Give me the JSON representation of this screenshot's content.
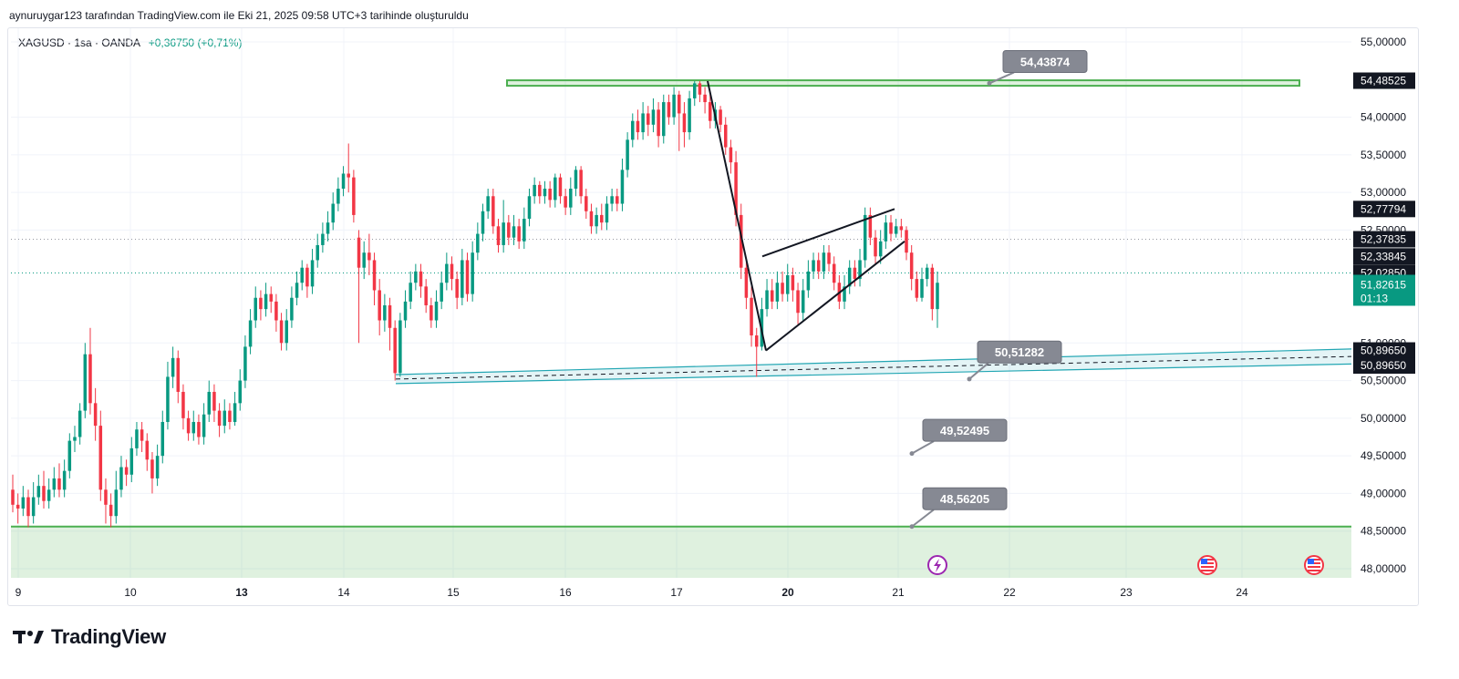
{
  "header": {
    "caption": "aynuruygar123 tarafından TradingView.com ile Eki 21, 2025 09:58 UTC+3 tarihinde oluşturuldu"
  },
  "legend": {
    "symbol": "XAGUSD · 1sa · OANDA",
    "change": "+0,36750 (+0,71%)"
  },
  "brand": {
    "name": "TradingView"
  },
  "colors": {
    "up": "#089981",
    "down": "#f23645",
    "zone_green": "#4caf50",
    "zone_teal": "#22a6b3",
    "label_gray": "#868993",
    "price_tag_dark": "#131722"
  },
  "chart_data": {
    "type": "candlestick",
    "symbol": "XAGUSD",
    "timeframe": "1sa",
    "broker": "OANDA",
    "ylim": [
      47.9,
      55.15
    ],
    "y_ticks": [
      "55,00000",
      "54,00000",
      "53,50000",
      "53,00000",
      "52,50000",
      "51,00000",
      "50,50000",
      "50,00000",
      "49,50000",
      "49,00000",
      "48,50000",
      "48,00000"
    ],
    "x_ticks": [
      {
        "label": "9",
        "bold": false
      },
      {
        "label": "10",
        "bold": false
      },
      {
        "label": "13",
        "bold": true
      },
      {
        "label": "14",
        "bold": false
      },
      {
        "label": "15",
        "bold": false
      },
      {
        "label": "16",
        "bold": false
      },
      {
        "label": "17",
        "bold": false
      },
      {
        "label": "20",
        "bold": true
      },
      {
        "label": "21",
        "bold": false
      },
      {
        "label": "22",
        "bold": false
      },
      {
        "label": "23",
        "bold": false
      },
      {
        "label": "24",
        "bold": false
      }
    ],
    "price_tags": [
      {
        "value": "54,48525",
        "price": 54.485,
        "kind": "dark"
      },
      {
        "value": "52,77794",
        "price": 52.78,
        "kind": "dark"
      },
      {
        "value": "52,37835",
        "price": 52.378,
        "kind": "dark"
      },
      {
        "value": "52,33845",
        "price": 52.15,
        "kind": "dark"
      },
      {
        "value": "52,02850",
        "price": 51.93,
        "kind": "dark"
      },
      {
        "value": "51,82615",
        "price": 51.7,
        "kind": "current",
        "countdown": "01:13"
      },
      {
        "value": "50,89650",
        "price": 50.9,
        "kind": "dark"
      },
      {
        "value": "50,89650",
        "price": 50.7,
        "kind": "dark"
      }
    ],
    "annotations": [
      {
        "text": "54,43874",
        "price": 54.74,
        "anchor_price": 54.45
      },
      {
        "text": "50,51282",
        "price": 50.88,
        "anchor_price": 50.52
      },
      {
        "text": "49,52495",
        "price": 49.84,
        "anchor_price": 49.53
      },
      {
        "text": "48,56205",
        "price": 48.93,
        "anchor_price": 48.56
      }
    ],
    "levels": {
      "resistance_zone": [
        54.42,
        54.49
      ],
      "support_line": 48.56,
      "support_zone_bottom": 47.9,
      "trend_channel": {
        "start_price": [
          50.58,
          50.46
        ],
        "end_price": [
          50.92,
          50.72
        ],
        "mid": [
          50.52,
          50.82
        ]
      }
    },
    "patterns": {
      "drop_leg": {
        "from_price": 54.48,
        "to_price": 50.9
      },
      "rising_wedge": {
        "upper": [
          52.15,
          52.78
        ],
        "lower": [
          50.9,
          52.35
        ]
      }
    },
    "candles": [
      [
        49.05,
        48.85,
        49.25,
        48.75
      ],
      [
        48.85,
        48.8,
        49.0,
        48.6
      ],
      [
        48.8,
        48.95,
        49.1,
        48.7
      ],
      [
        48.95,
        48.7,
        49.05,
        48.55
      ],
      [
        48.7,
        48.95,
        49.15,
        48.6
      ],
      [
        48.95,
        49.1,
        49.25,
        48.85
      ],
      [
        49.1,
        48.9,
        49.3,
        48.8
      ],
      [
        48.9,
        49.05,
        49.2,
        48.8
      ],
      [
        49.05,
        49.2,
        49.35,
        48.95
      ],
      [
        49.2,
        49.05,
        49.4,
        48.95
      ],
      [
        49.05,
        49.3,
        49.45,
        48.95
      ],
      [
        49.3,
        49.7,
        49.8,
        49.2
      ],
      [
        49.7,
        49.75,
        49.9,
        49.55
      ],
      [
        49.75,
        50.1,
        50.2,
        49.65
      ],
      [
        50.1,
        50.85,
        51.0,
        50.0
      ],
      [
        50.85,
        50.2,
        51.2,
        50.05
      ],
      [
        50.2,
        49.9,
        50.4,
        49.7
      ],
      [
        49.9,
        49.05,
        50.1,
        48.9
      ],
      [
        49.05,
        48.85,
        49.2,
        48.6
      ],
      [
        48.85,
        48.7,
        49.0,
        48.55
      ],
      [
        48.7,
        49.05,
        49.3,
        48.6
      ],
      [
        49.05,
        49.35,
        49.5,
        48.95
      ],
      [
        49.35,
        49.25,
        49.45,
        49.1
      ],
      [
        49.25,
        49.6,
        49.75,
        49.15
      ],
      [
        49.6,
        49.85,
        49.95,
        49.5
      ],
      [
        49.85,
        49.7,
        49.95,
        49.55
      ],
      [
        49.7,
        49.45,
        49.8,
        49.3
      ],
      [
        49.45,
        49.2,
        49.55,
        49.0
      ],
      [
        49.2,
        49.5,
        49.65,
        49.1
      ],
      [
        49.5,
        49.95,
        50.1,
        49.4
      ],
      [
        49.95,
        50.55,
        50.75,
        49.85
      ],
      [
        50.55,
        50.8,
        50.95,
        50.4
      ],
      [
        50.8,
        50.35,
        50.9,
        50.2
      ],
      [
        50.35,
        50.0,
        50.45,
        49.85
      ],
      [
        50.0,
        49.8,
        50.1,
        49.7
      ],
      [
        49.8,
        49.95,
        50.1,
        49.7
      ],
      [
        49.95,
        49.75,
        50.05,
        49.65
      ],
      [
        49.75,
        50.05,
        50.2,
        49.65
      ],
      [
        50.05,
        50.35,
        50.5,
        49.95
      ],
      [
        50.35,
        50.1,
        50.45,
        49.95
      ],
      [
        50.1,
        49.9,
        50.2,
        49.75
      ],
      [
        49.9,
        50.1,
        50.25,
        49.8
      ],
      [
        50.1,
        49.95,
        50.2,
        49.85
      ],
      [
        49.95,
        50.2,
        50.35,
        49.9
      ],
      [
        50.2,
        50.5,
        50.65,
        50.1
      ],
      [
        50.5,
        50.95,
        51.1,
        50.4
      ],
      [
        50.95,
        51.3,
        51.45,
        50.85
      ],
      [
        51.3,
        51.6,
        51.75,
        51.2
      ],
      [
        51.6,
        51.45,
        51.7,
        51.3
      ],
      [
        51.45,
        51.65,
        51.8,
        51.35
      ],
      [
        51.65,
        51.55,
        51.75,
        51.4
      ],
      [
        51.55,
        51.3,
        51.65,
        51.15
      ],
      [
        51.3,
        51.0,
        51.4,
        50.9
      ],
      [
        51.0,
        51.3,
        51.45,
        50.9
      ],
      [
        51.3,
        51.6,
        51.75,
        51.2
      ],
      [
        51.6,
        51.8,
        51.95,
        51.5
      ],
      [
        51.8,
        52.0,
        52.1,
        51.7
      ],
      [
        52.0,
        51.75,
        52.05,
        51.6
      ],
      [
        51.75,
        52.1,
        52.25,
        51.65
      ],
      [
        52.1,
        52.3,
        52.45,
        52.0
      ],
      [
        52.3,
        52.45,
        52.6,
        52.2
      ],
      [
        52.45,
        52.6,
        52.75,
        52.35
      ],
      [
        52.6,
        52.85,
        53.0,
        52.5
      ],
      [
        52.85,
        53.05,
        53.2,
        52.75
      ],
      [
        53.05,
        53.25,
        53.35,
        52.95
      ],
      [
        53.25,
        53.2,
        53.65,
        53.0
      ],
      [
        53.2,
        52.7,
        53.3,
        52.6
      ],
      [
        52.4,
        52.0,
        52.5,
        51.0
      ],
      [
        52.0,
        52.2,
        52.35,
        51.85
      ],
      [
        52.2,
        52.1,
        52.45,
        51.9
      ],
      [
        52.1,
        51.7,
        52.2,
        51.5
      ],
      [
        51.7,
        51.3,
        51.85,
        51.1
      ],
      [
        51.3,
        51.5,
        51.65,
        51.15
      ],
      [
        51.5,
        51.2,
        51.6,
        50.9
      ],
      [
        51.2,
        50.6,
        51.3,
        50.5
      ],
      [
        50.6,
        51.3,
        51.4,
        50.55
      ],
      [
        51.3,
        51.55,
        51.7,
        51.2
      ],
      [
        51.55,
        51.8,
        51.95,
        51.45
      ],
      [
        51.8,
        51.95,
        52.05,
        51.7
      ],
      [
        51.95,
        51.75,
        52.05,
        51.6
      ],
      [
        51.75,
        51.5,
        51.85,
        51.4
      ],
      [
        51.5,
        51.3,
        51.6,
        51.2
      ],
      [
        51.3,
        51.55,
        51.7,
        51.2
      ],
      [
        51.55,
        51.8,
        51.95,
        51.45
      ],
      [
        51.8,
        52.05,
        52.2,
        51.7
      ],
      [
        52.05,
        51.85,
        52.15,
        51.7
      ],
      [
        51.85,
        51.6,
        51.95,
        51.45
      ],
      [
        51.6,
        52.1,
        52.25,
        51.5
      ],
      [
        52.1,
        51.65,
        52.2,
        51.55
      ],
      [
        51.65,
        52.2,
        52.35,
        51.55
      ],
      [
        52.2,
        52.45,
        52.6,
        52.1
      ],
      [
        52.45,
        52.75,
        52.85,
        52.35
      ],
      [
        52.75,
        52.95,
        53.05,
        52.65
      ],
      [
        52.95,
        52.55,
        53.05,
        52.45
      ],
      [
        52.55,
        52.3,
        52.65,
        52.2
      ],
      [
        52.3,
        52.6,
        52.9,
        52.2
      ],
      [
        52.6,
        52.4,
        52.7,
        52.3
      ],
      [
        52.4,
        52.55,
        52.7,
        52.3
      ],
      [
        52.55,
        52.35,
        52.65,
        52.25
      ],
      [
        52.35,
        52.65,
        52.8,
        52.25
      ],
      [
        52.65,
        52.95,
        53.05,
        52.55
      ],
      [
        52.95,
        53.1,
        53.2,
        52.85
      ],
      [
        53.1,
        52.95,
        53.15,
        52.85
      ],
      [
        52.95,
        53.05,
        53.15,
        52.85
      ],
      [
        53.05,
        52.9,
        53.15,
        52.8
      ],
      [
        52.9,
        53.2,
        53.25,
        52.8
      ],
      [
        53.2,
        52.95,
        53.25,
        52.85
      ],
      [
        52.95,
        52.8,
        53.05,
        52.7
      ],
      [
        52.8,
        53.05,
        53.2,
        52.7
      ],
      [
        53.05,
        53.3,
        53.35,
        52.95
      ],
      [
        53.3,
        52.95,
        53.35,
        52.85
      ],
      [
        52.95,
        52.75,
        53.05,
        52.65
      ],
      [
        52.75,
        52.55,
        52.85,
        52.45
      ],
      [
        52.55,
        52.7,
        52.8,
        52.45
      ],
      [
        52.7,
        52.6,
        52.85,
        52.5
      ],
      [
        52.6,
        52.85,
        52.95,
        52.5
      ],
      [
        52.85,
        52.95,
        53.05,
        52.75
      ],
      [
        52.95,
        52.85,
        53.05,
        52.75
      ],
      [
        52.85,
        53.3,
        53.45,
        52.75
      ],
      [
        53.3,
        53.7,
        53.8,
        53.2
      ],
      [
        53.7,
        53.95,
        54.05,
        53.6
      ],
      [
        53.95,
        53.8,
        54.1,
        53.7
      ],
      [
        53.8,
        54.05,
        54.2,
        53.7
      ],
      [
        54.05,
        53.9,
        54.15,
        53.75
      ],
      [
        53.9,
        54.1,
        54.25,
        53.8
      ],
      [
        54.1,
        53.75,
        54.2,
        53.6
      ],
      [
        53.75,
        54.2,
        54.3,
        53.65
      ],
      [
        54.2,
        54.0,
        54.3,
        53.9
      ],
      [
        54.0,
        54.3,
        54.4,
        53.9
      ],
      [
        54.3,
        54.05,
        54.35,
        53.55
      ],
      [
        54.05,
        53.8,
        54.2,
        53.6
      ],
      [
        53.8,
        54.25,
        54.35,
        53.7
      ],
      [
        54.25,
        54.45,
        54.48,
        54.15
      ],
      [
        54.45,
        54.3,
        54.48,
        54.2
      ],
      [
        54.3,
        54.2,
        54.4,
        54.05
      ],
      [
        54.2,
        53.95,
        54.3,
        53.85
      ],
      [
        53.95,
        54.1,
        54.2,
        53.85
      ],
      [
        54.1,
        53.9,
        54.15,
        53.8
      ],
      [
        53.9,
        53.6,
        54.0,
        53.5
      ],
      [
        53.6,
        53.4,
        53.7,
        53.25
      ],
      [
        53.4,
        52.7,
        53.55,
        52.55
      ],
      [
        52.7,
        52.0,
        52.85,
        51.85
      ],
      [
        52.0,
        51.6,
        52.1,
        51.45
      ],
      [
        51.6,
        51.1,
        51.75,
        50.95
      ],
      [
        51.1,
        50.95,
        51.2,
        50.55
      ],
      [
        50.95,
        51.45,
        51.6,
        50.9
      ],
      [
        51.45,
        51.7,
        51.85,
        51.35
      ],
      [
        51.7,
        51.55,
        51.85,
        51.45
      ],
      [
        51.55,
        51.8,
        51.95,
        51.45
      ],
      [
        51.8,
        51.65,
        51.95,
        51.55
      ],
      [
        51.65,
        51.9,
        52.05,
        51.55
      ],
      [
        51.9,
        51.7,
        52.0,
        51.55
      ],
      [
        51.7,
        51.4,
        51.8,
        51.25
      ],
      [
        51.4,
        51.7,
        51.85,
        51.3
      ],
      [
        51.7,
        51.95,
        52.1,
        51.6
      ],
      [
        51.95,
        52.1,
        52.2,
        51.85
      ],
      [
        52.1,
        51.95,
        52.2,
        51.85
      ],
      [
        51.95,
        52.2,
        52.3,
        51.85
      ],
      [
        52.2,
        52.05,
        52.3,
        51.95
      ],
      [
        52.05,
        51.8,
        52.15,
        51.7
      ],
      [
        51.8,
        51.55,
        51.9,
        51.45
      ],
      [
        51.55,
        51.75,
        51.9,
        51.45
      ],
      [
        51.75,
        52.0,
        52.1,
        51.65
      ],
      [
        52.0,
        51.85,
        52.1,
        51.75
      ],
      [
        51.85,
        52.1,
        52.25,
        51.75
      ],
      [
        52.1,
        52.7,
        52.8,
        52.0
      ],
      [
        52.7,
        52.4,
        52.8,
        52.3
      ],
      [
        52.4,
        52.15,
        52.5,
        52.05
      ],
      [
        52.15,
        52.35,
        52.5,
        52.05
      ],
      [
        52.35,
        52.6,
        52.7,
        52.25
      ],
      [
        52.6,
        52.45,
        52.7,
        52.35
      ],
      [
        52.45,
        52.55,
        52.65,
        52.4
      ],
      [
        52.55,
        52.5,
        52.65,
        52.4
      ],
      [
        52.5,
        52.2,
        52.55,
        52.1
      ],
      [
        52.2,
        51.85,
        52.3,
        51.7
      ],
      [
        51.85,
        51.6,
        51.95,
        51.55
      ],
      [
        51.6,
        51.85,
        52.0,
        51.55
      ],
      [
        51.85,
        52.0,
        52.05,
        51.75
      ],
      [
        52.0,
        51.45,
        52.05,
        51.3
      ],
      [
        51.45,
        51.8,
        51.95,
        51.2
      ]
    ]
  }
}
